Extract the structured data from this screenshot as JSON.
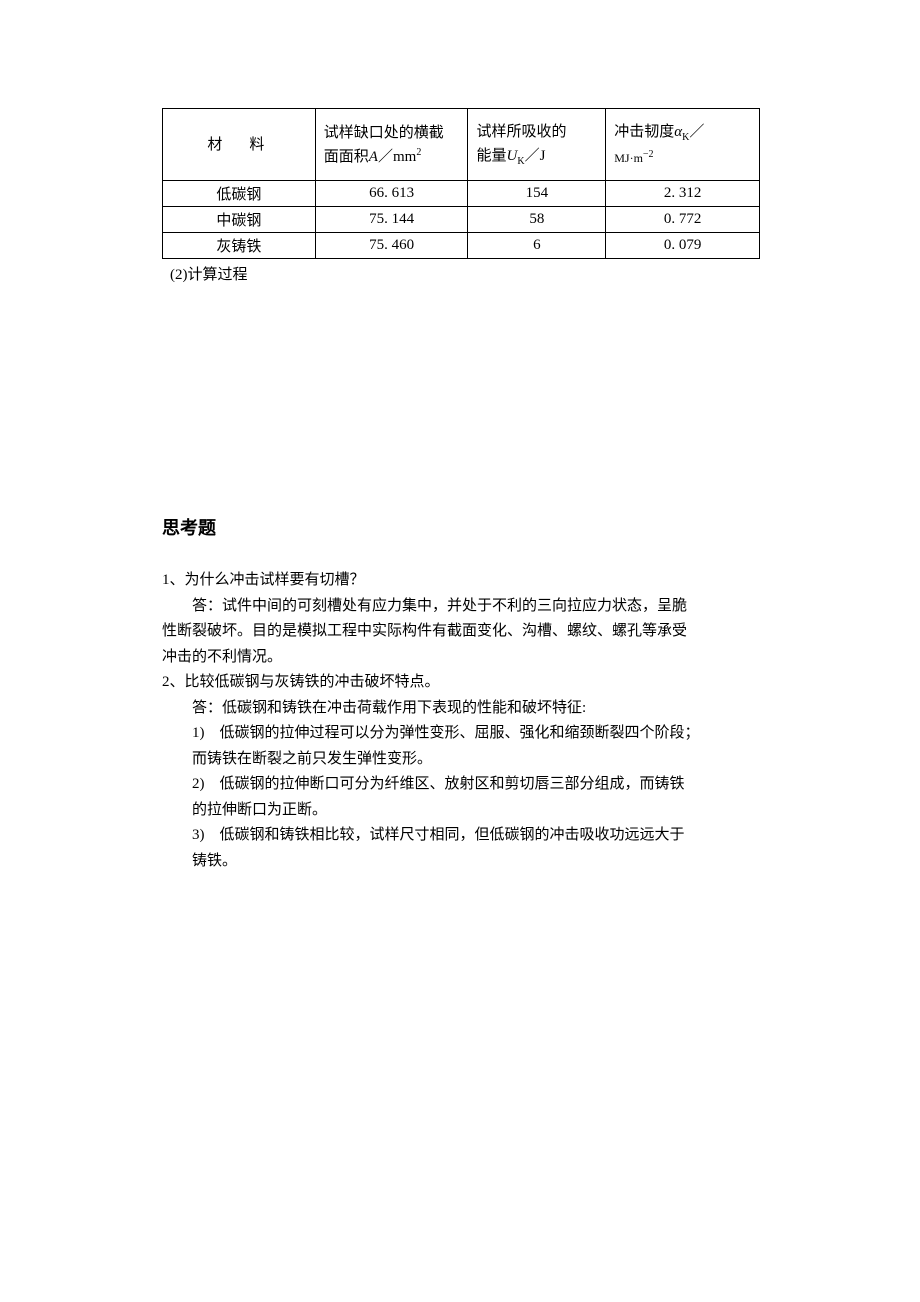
{
  "table": {
    "headers": {
      "c1": "材　料",
      "c2_line1": "试样缺口处的横截",
      "c2_line2_a": "面面积",
      "c2_line2_A": "A",
      "c2_line2_slash": "／",
      "c2_line2_mm": "mm",
      "c2_line2_exp": "2",
      "c3_line1": "试样所吸收的",
      "c3_line2_a": "能量",
      "c3_line2_U": "U",
      "c3_line2_K": "K",
      "c3_line2_slash": "／",
      "c3_line2_J": "J",
      "c4_line1_a": "冲击韧度",
      "c4_line1_alpha": "α",
      "c4_line1_K": "K",
      "c4_line1_slash": "／",
      "c4_line2_MJ": "MJ",
      "c4_line2_dot": "·",
      "c4_line2_m": "m",
      "c4_line2_exp": "−2"
    },
    "rows": [
      {
        "material": "低碳钢",
        "area": "66. 613",
        "energy": "154",
        "toughness": "2. 312"
      },
      {
        "material": "中碳钢",
        "area": "75. 144",
        "energy": "58",
        "toughness": "0. 772"
      },
      {
        "material": "灰铸铁",
        "area": "75. 460",
        "energy": "6",
        "toughness": "0. 079"
      }
    ]
  },
  "caption": "(2)计算过程",
  "section_title": "思考题",
  "q1": {
    "num": "1、",
    "question": "为什么冲击试样要有切槽？",
    "ans_l1": "答：试件中间的可刻槽处有应力集中，并处于不利的三向拉应力状态，呈脆",
    "ans_l2": "性断裂破坏。目的是模拟工程中实际构件有截面变化、沟槽、螺纹、螺孔等承受",
    "ans_l3": "冲击的不利情况。"
  },
  "q2": {
    "num": "2、",
    "question": "比较低碳钢与灰铸铁的冲击破坏特点。",
    "ans_l1": "答：低碳钢和铸铁在冲击荷载作用下表现的性能和破坏特征:",
    "item1_l1": "1)　低碳钢的拉伸过程可以分为弹性变形、屈服、强化和缩颈断裂四个阶段；",
    "item1_l2": "而铸铁在断裂之前只发生弹性变形。",
    "item2_l1": "2)　低碳钢的拉伸断口可分为纤维区、放射区和剪切唇三部分组成，而铸铁",
    "item2_l2": "的拉伸断口为正断。",
    "item3_l1": "3)　低碳钢和铸铁相比较，试样尺寸相同，但低碳钢的冲击吸收功远远大于",
    "item3_l2": "铸铁。"
  }
}
